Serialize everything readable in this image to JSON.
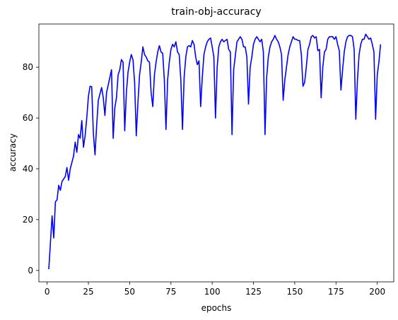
{
  "chart_data": {
    "type": "line",
    "title": "train-obj-accuracy",
    "xlabel": "epochs",
    "ylabel": "accuracy",
    "xlim": [
      -5,
      210
    ],
    "ylim": [
      -4.5,
      97
    ],
    "xticks": [
      0,
      25,
      50,
      75,
      100,
      125,
      150,
      175,
      200
    ],
    "yticks": [
      0,
      20,
      40,
      60,
      80
    ],
    "grid": false,
    "line_color": "#0000ff",
    "series": [
      {
        "points": [
          [
            1,
            0.5
          ],
          [
            3,
            21.5
          ],
          [
            4,
            12.8
          ],
          [
            5,
            27.0
          ],
          [
            6,
            27.8
          ],
          [
            7,
            33.5
          ],
          [
            8,
            31.5
          ],
          [
            9,
            35.0
          ],
          [
            10,
            36.0
          ],
          [
            11,
            37.0
          ],
          [
            12,
            40.5
          ],
          [
            13,
            35.5
          ],
          [
            14,
            40.0
          ],
          [
            16,
            45.0
          ],
          [
            17,
            50.5
          ],
          [
            18,
            46.5
          ],
          [
            19,
            53.5
          ],
          [
            20,
            52.0
          ],
          [
            21,
            59.0
          ],
          [
            22,
            48.5
          ],
          [
            23,
            53.0
          ],
          [
            24,
            60.0
          ],
          [
            25,
            68.5
          ],
          [
            26,
            72.5
          ],
          [
            27,
            72.3
          ],
          [
            28,
            54.0
          ],
          [
            29,
            45.5
          ],
          [
            30,
            57.0
          ],
          [
            31,
            67.0
          ],
          [
            33,
            72.0
          ],
          [
            34,
            68.0
          ],
          [
            35,
            61.0
          ],
          [
            36,
            70.0
          ],
          [
            37,
            73.0
          ],
          [
            38,
            76.0
          ],
          [
            39,
            79.0
          ],
          [
            40,
            52.0
          ],
          [
            41,
            64.0
          ],
          [
            42,
            68.0
          ],
          [
            43,
            77.0
          ],
          [
            44,
            79.0
          ],
          [
            45,
            83.0
          ],
          [
            46,
            82.0
          ],
          [
            47,
            55.0
          ],
          [
            48,
            70.0
          ],
          [
            49,
            78.0
          ],
          [
            50,
            82.0
          ],
          [
            51,
            85.0
          ],
          [
            52,
            83.0
          ],
          [
            53,
            74.0
          ],
          [
            54,
            53.0
          ],
          [
            55,
            66.0
          ],
          [
            56,
            77.0
          ],
          [
            57,
            82.0
          ],
          [
            58,
            88.0
          ],
          [
            59,
            85.0
          ],
          [
            60,
            84.0
          ],
          [
            61,
            82.5
          ],
          [
            62,
            82.0
          ],
          [
            63,
            70.0
          ],
          [
            64,
            64.5
          ],
          [
            65,
            77.0
          ],
          [
            66,
            82.0
          ],
          [
            67,
            86.0
          ],
          [
            68,
            88.5
          ],
          [
            69,
            86.0
          ],
          [
            70,
            85.5
          ],
          [
            71,
            75.0
          ],
          [
            72,
            55.5
          ],
          [
            73,
            75.0
          ],
          [
            74,
            82.0
          ],
          [
            75,
            87.0
          ],
          [
            76,
            89.0
          ],
          [
            77,
            88.0
          ],
          [
            78,
            90.0
          ],
          [
            79,
            86.0
          ],
          [
            80,
            85.0
          ],
          [
            81,
            75.0
          ],
          [
            82,
            55.5
          ],
          [
            83,
            76.0
          ],
          [
            84,
            84.0
          ],
          [
            85,
            88.0
          ],
          [
            86,
            88.5
          ],
          [
            87,
            88.0
          ],
          [
            88,
            90.5
          ],
          [
            89,
            89.0
          ],
          [
            90,
            84.0
          ],
          [
            91,
            81.0
          ],
          [
            92,
            82.5
          ],
          [
            93,
            64.5
          ],
          [
            94,
            76.0
          ],
          [
            95,
            85.0
          ],
          [
            96,
            88.0
          ],
          [
            97,
            90.0
          ],
          [
            98,
            91.0
          ],
          [
            99,
            91.5
          ],
          [
            100,
            88.0
          ],
          [
            101,
            84.0
          ],
          [
            102,
            60.0
          ],
          [
            103,
            80.0
          ],
          [
            104,
            88.0
          ],
          [
            105,
            90.0
          ],
          [
            106,
            91.0
          ],
          [
            107,
            90.0
          ],
          [
            108,
            90.5
          ],
          [
            109,
            91.0
          ],
          [
            110,
            87.0
          ],
          [
            111,
            86.0
          ],
          [
            112,
            53.5
          ],
          [
            113,
            79.0
          ],
          [
            114,
            84.5
          ],
          [
            115,
            90.0
          ],
          [
            116,
            91.0
          ],
          [
            117,
            92.0
          ],
          [
            118,
            91.0
          ],
          [
            119,
            88.0
          ],
          [
            120,
            88.0
          ],
          [
            121,
            84.0
          ],
          [
            122,
            65.5
          ],
          [
            123,
            80.0
          ],
          [
            124,
            84.0
          ],
          [
            125,
            89.0
          ],
          [
            126,
            91.0
          ],
          [
            127,
            92.0
          ],
          [
            128,
            91.0
          ],
          [
            129,
            90.0
          ],
          [
            130,
            91.0
          ],
          [
            131,
            86.0
          ],
          [
            132,
            53.5
          ],
          [
            133,
            76.0
          ],
          [
            134,
            84.0
          ],
          [
            135,
            88.0
          ],
          [
            136,
            90.0
          ],
          [
            137,
            91.0
          ],
          [
            138,
            92.5
          ],
          [
            139,
            91.0
          ],
          [
            140,
            90.0
          ],
          [
            141,
            88.0
          ],
          [
            142,
            85.0
          ],
          [
            143,
            67.0
          ],
          [
            144,
            75.0
          ],
          [
            145,
            80.0
          ],
          [
            146,
            85.0
          ],
          [
            147,
            88.0
          ],
          [
            148,
            90.0
          ],
          [
            149,
            92.0
          ],
          [
            150,
            91.0
          ],
          [
            151,
            91.0
          ],
          [
            152,
            90.5
          ],
          [
            153,
            90.5
          ],
          [
            154,
            85.0
          ],
          [
            155,
            72.5
          ],
          [
            156,
            74.0
          ],
          [
            157,
            80.0
          ],
          [
            158,
            87.0
          ],
          [
            159,
            89.0
          ],
          [
            160,
            92.0
          ],
          [
            161,
            92.5
          ],
          [
            162,
            91.5
          ],
          [
            163,
            92.0
          ],
          [
            164,
            86.5
          ],
          [
            165,
            87.0
          ],
          [
            166,
            68.0
          ],
          [
            167,
            80.0
          ],
          [
            168,
            86.0
          ],
          [
            169,
            87.0
          ],
          [
            170,
            91.0
          ],
          [
            171,
            92.0
          ],
          [
            172,
            92.0
          ],
          [
            173,
            92.0
          ],
          [
            174,
            91.0
          ],
          [
            175,
            92.0
          ],
          [
            176,
            89.0
          ],
          [
            177,
            86.5
          ],
          [
            178,
            71.0
          ],
          [
            179,
            79.0
          ],
          [
            180,
            86.0
          ],
          [
            181,
            90.0
          ],
          [
            182,
            92.0
          ],
          [
            183,
            92.5
          ],
          [
            184,
            92.5
          ],
          [
            185,
            92.0
          ],
          [
            186,
            87.0
          ],
          [
            187,
            59.5
          ],
          [
            188,
            75.0
          ],
          [
            189,
            85.0
          ],
          [
            190,
            89.0
          ],
          [
            191,
            91.0
          ],
          [
            192,
            91.0
          ],
          [
            193,
            93.0
          ],
          [
            194,
            92.0
          ],
          [
            195,
            91.0
          ],
          [
            196,
            91.5
          ],
          [
            197,
            89.0
          ],
          [
            198,
            86.0
          ],
          [
            199,
            59.5
          ],
          [
            200,
            77.0
          ],
          [
            201,
            82.0
          ],
          [
            202,
            89.0
          ]
        ]
      }
    ]
  }
}
